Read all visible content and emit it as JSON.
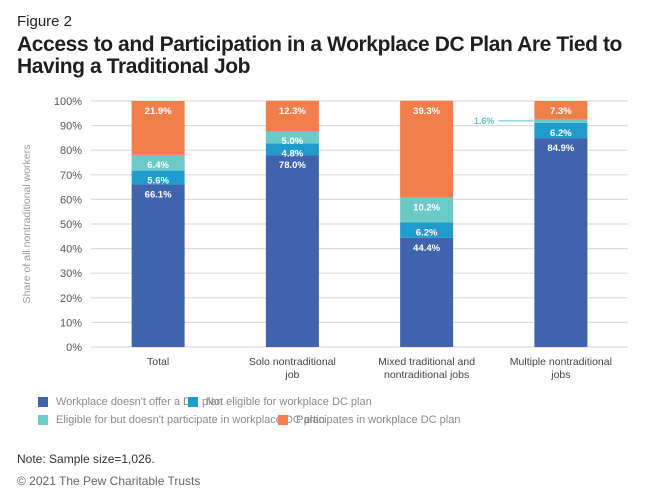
{
  "figure_label": "Figure 2",
  "title": "Access to and Participation in a Workplace DC Plan Are Tied to Having a Traditional Job",
  "note": "Note: Sample size=1,026.",
  "copyright": "© 2021 The Pew Charitable Trusts",
  "chart_data": {
    "type": "bar",
    "stacked": true,
    "title": "Access to and Participation in a Workplace DC Plan Are Tied to Having a Traditional Job",
    "xlabel": "",
    "ylabel": "Share of all nontraditional workers",
    "ylim": [
      0,
      100
    ],
    "yticks": [
      "0%",
      "10%",
      "20%",
      "30%",
      "40%",
      "50%",
      "60%",
      "70%",
      "80%",
      "90%",
      "100%"
    ],
    "grid": true,
    "legend_position": "bottom",
    "categories": [
      [
        "Total"
      ],
      [
        "Solo nontraditional",
        "job"
      ],
      [
        "Mixed traditional and",
        "nontraditional jobs"
      ],
      [
        "Multiple nontraditional",
        "jobs"
      ]
    ],
    "series": [
      {
        "name": "Workplace doesn't offer a DC plan",
        "color": "#3f64ad",
        "values": [
          66.1,
          78.0,
          44.4,
          84.9
        ],
        "labels": [
          "66.1%",
          "78.0%",
          "44.4%",
          "84.9%"
        ]
      },
      {
        "name": "Not eligible for workplace DC plan",
        "color": "#1f9ccb",
        "values": [
          5.6,
          4.8,
          6.2,
          6.2
        ],
        "labels": [
          "5.6%",
          "4.8%",
          "6.2%",
          "6.2%"
        ]
      },
      {
        "name": "Eligible for but doesn't participate in workplace DC plan",
        "color": "#6bcac8",
        "values": [
          6.4,
          5.0,
          10.2,
          1.6
        ],
        "labels": [
          "6.4%",
          "5.0%",
          "10.2%",
          "1.6%"
        ]
      },
      {
        "name": "Participates in workplace DC plan",
        "color": "#f27f4b",
        "values": [
          21.9,
          12.3,
          39.3,
          7.3
        ],
        "labels": [
          "21.9%",
          "12.3%",
          "39.3%",
          "7.3%"
        ]
      }
    ],
    "annotations": [
      {
        "category_index": 3,
        "series_index": 2,
        "text": "1.6%",
        "style": "callout-left",
        "color": "#5cc4c2"
      }
    ]
  }
}
